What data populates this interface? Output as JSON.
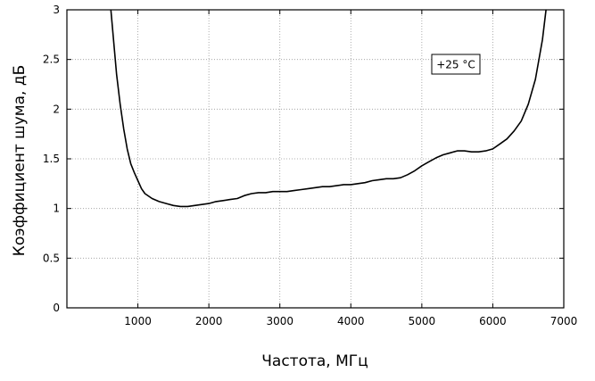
{
  "chart_data": {
    "type": "line",
    "xlabel": "Частота, МГц",
    "ylabel": "Коэффициент шума, дБ",
    "xlim": [
      0,
      7000
    ],
    "ylim": [
      0,
      3
    ],
    "xticks": [
      1000,
      2000,
      3000,
      4000,
      5000,
      6000,
      7000
    ],
    "yticks": [
      0,
      0.5,
      1,
      1.5,
      2,
      2.5,
      3
    ],
    "ytick_labels": [
      "0",
      "0.5",
      "1",
      "1.5",
      "2",
      "2.5",
      "3"
    ],
    "grid": true,
    "annotation": "+25 °C",
    "series": [
      {
        "color": "#000000",
        "x": [
          620,
          700,
          750,
          800,
          850,
          900,
          950,
          1000,
          1050,
          1100,
          1200,
          1300,
          1400,
          1500,
          1600,
          1700,
          1800,
          1900,
          2000,
          2100,
          2200,
          2300,
          2400,
          2500,
          2600,
          2700,
          2800,
          2900,
          3000,
          3100,
          3200,
          3300,
          3400,
          3500,
          3600,
          3700,
          3800,
          3900,
          4000,
          4100,
          4200,
          4300,
          4400,
          4500,
          4600,
          4700,
          4800,
          4900,
          5000,
          5100,
          5200,
          5300,
          5400,
          5500,
          5600,
          5700,
          5800,
          5900,
          6000,
          6100,
          6200,
          6300,
          6400,
          6500,
          6600,
          6700,
          6750,
          6800
        ],
        "y": [
          3.0,
          2.35,
          2.05,
          1.8,
          1.6,
          1.45,
          1.36,
          1.28,
          1.2,
          1.15,
          1.1,
          1.07,
          1.05,
          1.03,
          1.02,
          1.02,
          1.03,
          1.04,
          1.05,
          1.07,
          1.08,
          1.09,
          1.1,
          1.13,
          1.15,
          1.16,
          1.16,
          1.17,
          1.17,
          1.17,
          1.18,
          1.19,
          1.2,
          1.21,
          1.22,
          1.22,
          1.23,
          1.24,
          1.24,
          1.25,
          1.26,
          1.28,
          1.29,
          1.3,
          1.3,
          1.31,
          1.34,
          1.38,
          1.43,
          1.47,
          1.51,
          1.54,
          1.56,
          1.58,
          1.58,
          1.57,
          1.57,
          1.58,
          1.6,
          1.65,
          1.7,
          1.78,
          1.88,
          2.05,
          2.3,
          2.7,
          3.0,
          3.3
        ]
      }
    ]
  }
}
